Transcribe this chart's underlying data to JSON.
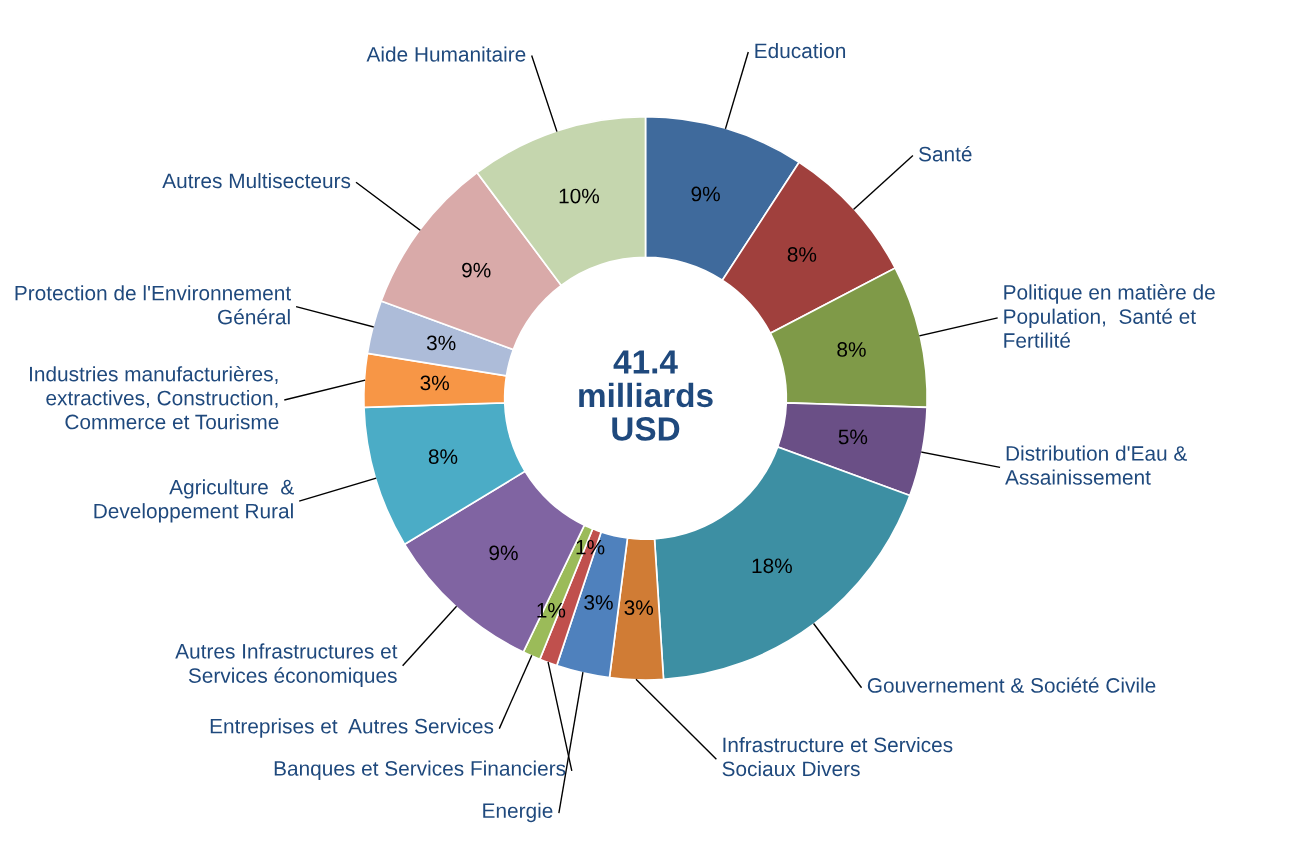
{
  "chart_data": {
    "type": "donut",
    "categories": [
      "Education",
      "Santé",
      "Politique en matière de\nPopulation,  Santé et\nFertilité",
      "Distribution d'Eau &\nAssainissement",
      "Gouvernement & Société Civile",
      "Infrastructure et Services\nSociaux Divers",
      "Energie",
      "Banques et Services Financiers",
      "Entreprises et  Autres Services",
      "Autres Infrastructures et\nServices économiques",
      "Agriculture  &\nDeveloppement Rural",
      "Industries manufacturières,\nextractives, Construction,\nCommerce et Tourisme",
      "Protection de l'Environnement\nGénéral",
      "Autres Multisecteurs",
      "Aide Humanitaire"
    ],
    "values": [
      9,
      8,
      8,
      5,
      18,
      3,
      3,
      1,
      1,
      9,
      8,
      3,
      3,
      9,
      10
    ],
    "value_labels": [
      "9%",
      "8%",
      "8%",
      "5%",
      "18%",
      "3%",
      "3%",
      "1%",
      "1%",
      "9%",
      "8%",
      "3%",
      "3%",
      "9%",
      "10%"
    ],
    "colors": [
      "#3f6a9c",
      "#a0403d",
      "#7f9a48",
      "#6a4f86",
      "#3d8fa3",
      "#d07c35",
      "#4f81bd",
      "#c0504d",
      "#9bbb59",
      "#8064a2",
      "#4bacc6",
      "#f79646",
      "#adbcd9",
      "#d9aaa9",
      "#c5d6ae"
    ],
    "annotations": [
      "41.4\nmilliards\nUSD"
    ],
    "legend": false
  }
}
